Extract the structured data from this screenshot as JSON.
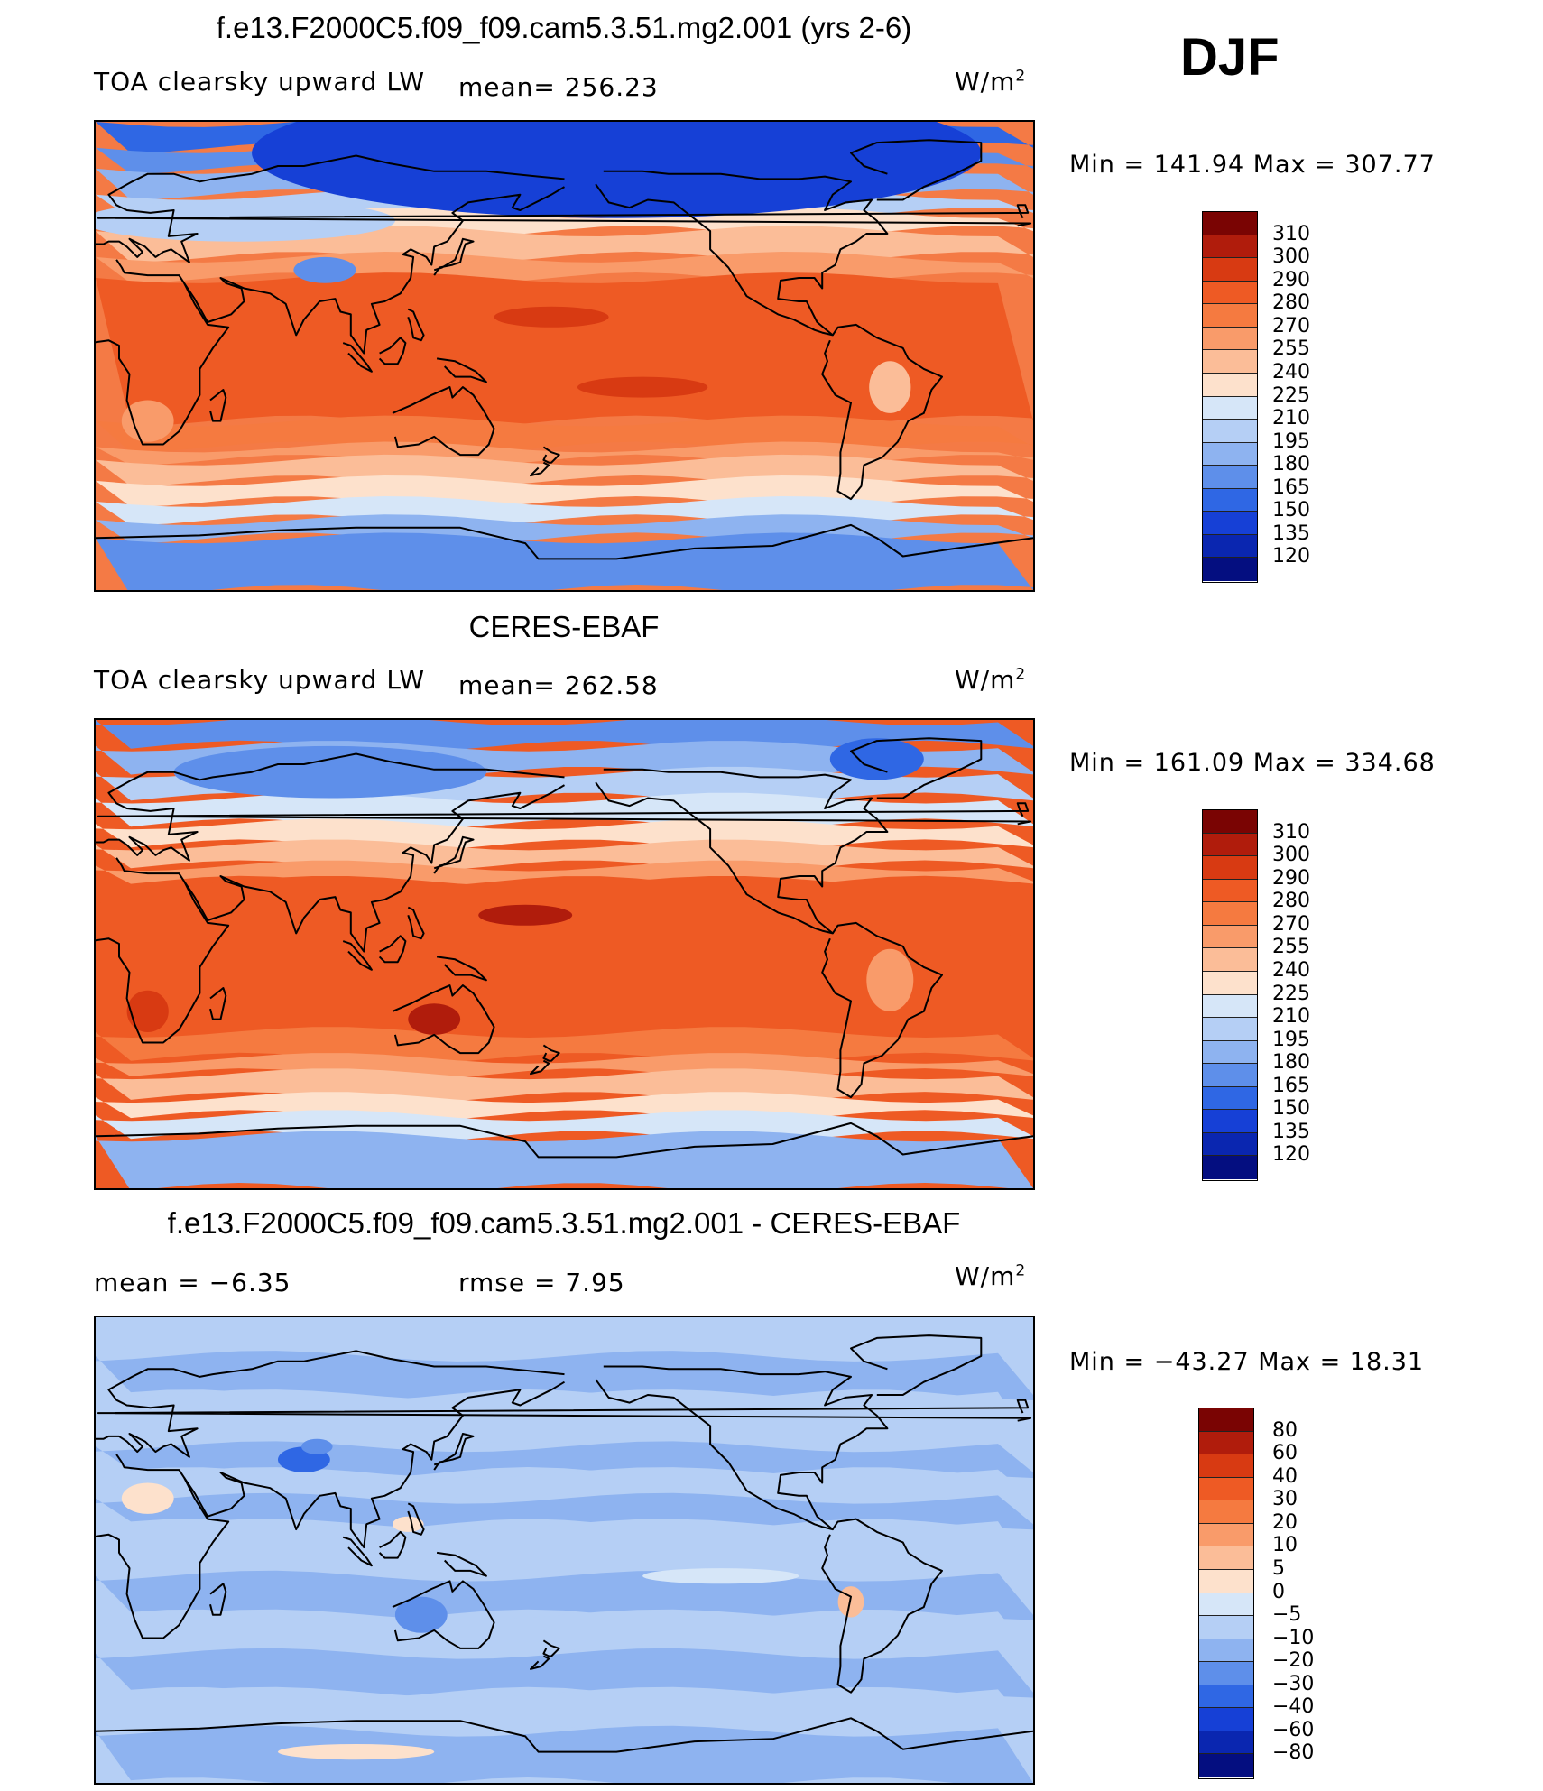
{
  "season": "DJF",
  "unit_main": "W/m",
  "unit_sup": "2",
  "panels": [
    {
      "title": "f.e13.F2000C5.f09_f09.cam5.3.51.mg2.001 (yrs 2-6)",
      "variable": "TOA clearsky upward LW",
      "stat_left": "",
      "stat_mid": "mean=  256.23",
      "minmax": "Min  =  141.94  Max  =  307.77",
      "scale": "abs",
      "map_variant": "model"
    },
    {
      "title": "CERES-EBAF",
      "variable": "TOA clearsky upward LW",
      "stat_left": "",
      "stat_mid": "mean=  262.58",
      "minmax": "Min  =  161.09  Max  =  334.68",
      "scale": "abs",
      "map_variant": "obs"
    },
    {
      "title": "f.e13.F2000C5.f09_f09.cam5.3.51.mg2.001 - CERES-EBAF",
      "variable": "",
      "stat_left": "mean  =    −6.35",
      "stat_mid": "rmse  =      7.95",
      "minmax": "Min  =  −43.27  Max  =    18.31",
      "scale": "diff",
      "map_variant": "diff"
    }
  ],
  "colorbars": {
    "abs": {
      "ticks": [
        "310",
        "300",
        "290",
        "280",
        "270",
        "255",
        "240",
        "225",
        "210",
        "195",
        "180",
        "165",
        "150",
        "135",
        "120"
      ],
      "colors": [
        "#7a0403",
        "#b01c0c",
        "#d83a12",
        "#ee5a24",
        "#f57a40",
        "#f99b6a",
        "#fbbd98",
        "#fde1cc",
        "#d6e6f8",
        "#b5cff5",
        "#8eb3f0",
        "#5e8fea",
        "#2f67e4",
        "#1640d6",
        "#0a26b0",
        "#040e80"
      ]
    },
    "diff": {
      "ticks": [
        "80",
        "60",
        "40",
        "30",
        "20",
        "10",
        "5",
        "0",
        "−5",
        "−10",
        "−20",
        "−30",
        "−40",
        "−60",
        "−80"
      ],
      "colors": [
        "#7a0403",
        "#b01c0c",
        "#d83a12",
        "#ee5a24",
        "#f57a40",
        "#f99b6a",
        "#fbbd98",
        "#fde1cc",
        "#d6e6f8",
        "#b5cff5",
        "#8eb3f0",
        "#5e8fea",
        "#2f67e4",
        "#1640d6",
        "#0a26b0",
        "#040e80"
      ]
    }
  }
}
